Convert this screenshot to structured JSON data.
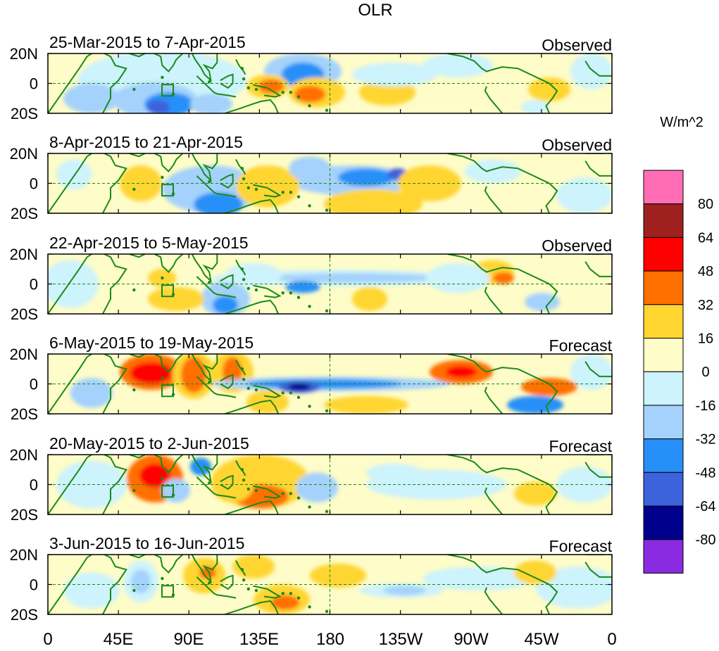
{
  "title": "OLR",
  "units_label": "W/m^2",
  "lat_labels": [
    "20N",
    "0",
    "20S"
  ],
  "lon_labels": [
    "0",
    "45E",
    "90E",
    "135E",
    "180",
    "135W",
    "90W",
    "45W",
    "0"
  ],
  "panels": [
    {
      "period": "25-Mar-2015 to 7-Apr-2015",
      "type": "Observed"
    },
    {
      "period": "8-Apr-2015 to 21-Apr-2015",
      "type": "Observed"
    },
    {
      "period": "22-Apr-2015 to 5-May-2015",
      "type": "Observed"
    },
    {
      "period": "6-May-2015 to 19-May-2015",
      "type": "Forecast"
    },
    {
      "period": "20-May-2015 to 2-Jun-2015",
      "type": "Forecast"
    },
    {
      "period": "3-Jun-2015 to 16-Jun-2015",
      "type": "Forecast"
    }
  ],
  "colorbar": {
    "labels": [
      "80",
      "64",
      "48",
      "32",
      "16",
      "0",
      "-16",
      "-32",
      "-48",
      "-64",
      "-80"
    ],
    "colors": [
      "#ff6eb4",
      "#a02020",
      "#ff0000",
      "#ff7000",
      "#ffd530",
      "#fefcc8",
      "#cdf3fc",
      "#a4d2fc",
      "#2690f8",
      "#3c62dc",
      "#00008c",
      "#8a2be2"
    ]
  },
  "colors": {
    "coast": "#1a8a1a",
    "background": "#fefcc8"
  }
}
